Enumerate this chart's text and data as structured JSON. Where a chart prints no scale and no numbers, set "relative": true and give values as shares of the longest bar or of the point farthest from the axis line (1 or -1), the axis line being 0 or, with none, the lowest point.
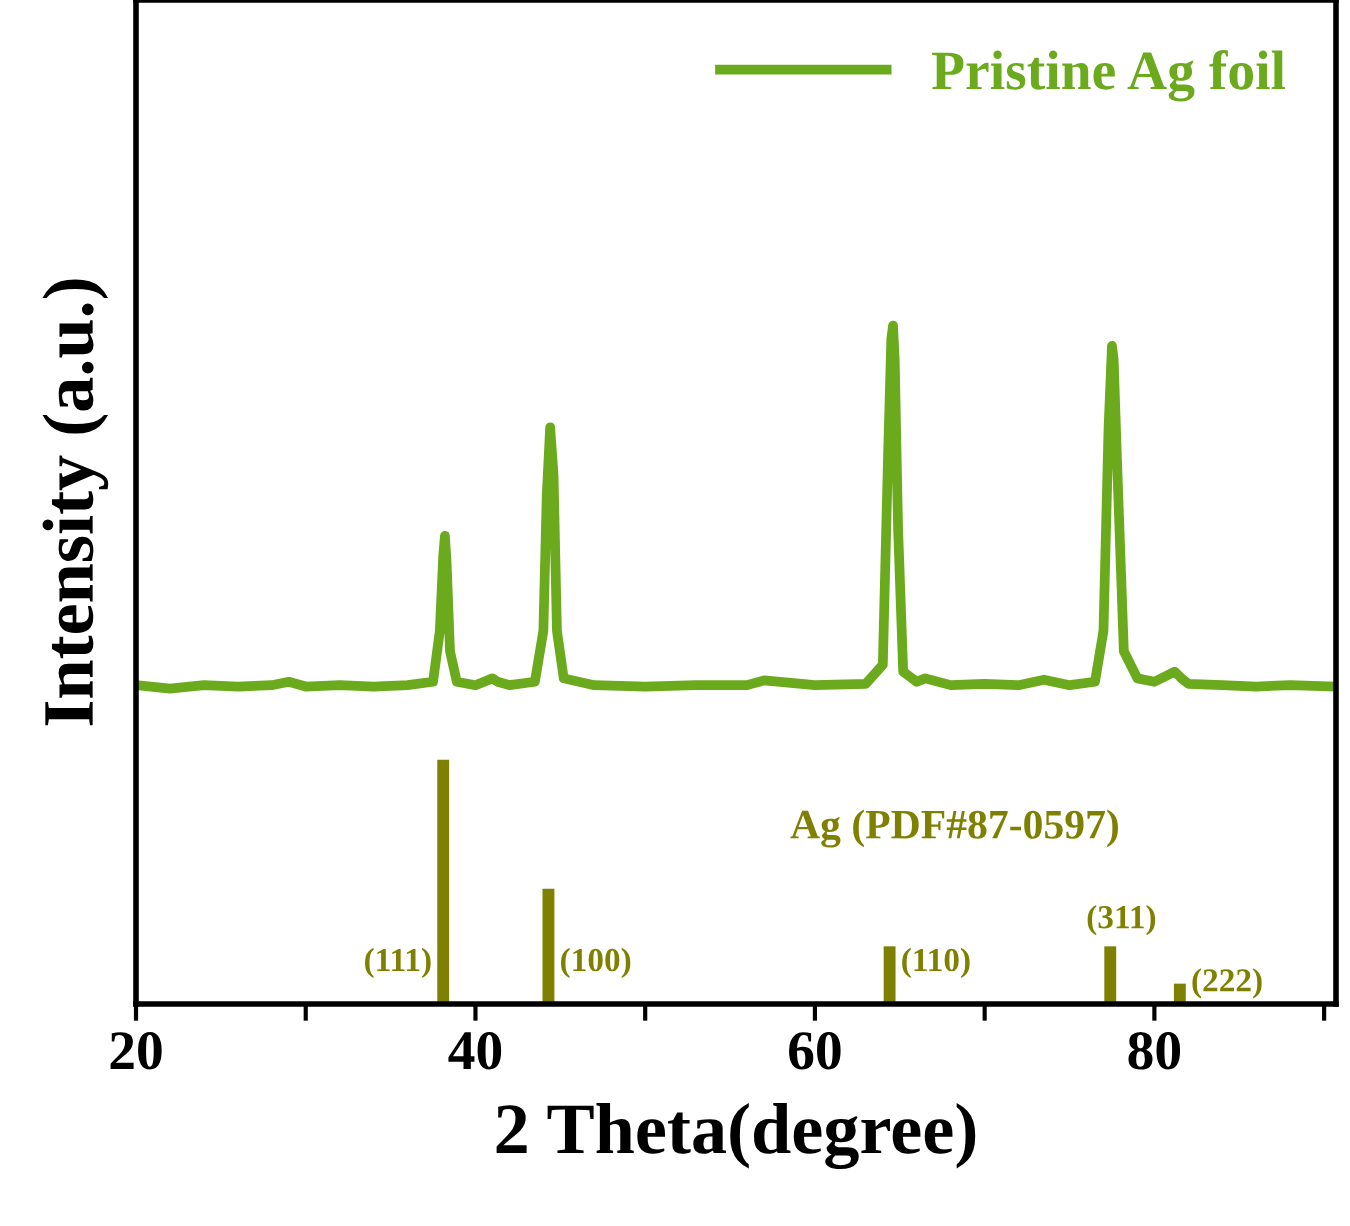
{
  "chart_data": {
    "type": "line",
    "relative": true,
    "xlabel": "2 Theta(degree)",
    "ylabel": "Intensity (a.u.)",
    "xlim": [
      20,
      90.7
    ],
    "xticks": [
      20,
      {
        "value": 30,
        "label": null
      },
      40,
      {
        "value": 50,
        "label": null
      },
      60,
      {
        "value": 70,
        "label": null
      },
      80,
      {
        "value": 90,
        "label": null
      }
    ],
    "legend": "top right",
    "grid": false,
    "tick_labels": "x",
    "series": [
      {
        "name": "Pristine Ag foil",
        "color": "#6aaa1c",
        "x": [
          20,
          22,
          24,
          26,
          28,
          29,
          30,
          32,
          34,
          36,
          37.5,
          37.9,
          38.1,
          38.2,
          38.3,
          38.5,
          38.9,
          40,
          41,
          41.3,
          42,
          43.5,
          44.0,
          44.2,
          44.4,
          44.6,
          44.8,
          45.2,
          47,
          50,
          53,
          56,
          57,
          60,
          63,
          64.0,
          64.3,
          64.5,
          64.6,
          64.7,
          64.9,
          65.2,
          66,
          66.5,
          68,
          70,
          72,
          73.5,
          75,
          76.5,
          77.0,
          77.3,
          77.5,
          77.6,
          77.8,
          78.2,
          79,
          80,
          81.2,
          81.6,
          82,
          84,
          86,
          88,
          90.5
        ],
        "values": [
          0.47,
          0.465,
          0.47,
          0.468,
          0.47,
          0.475,
          0.468,
          0.47,
          0.468,
          0.47,
          0.475,
          0.55,
          0.66,
          0.69,
          0.65,
          0.52,
          0.475,
          0.47,
          0.48,
          0.475,
          0.47,
          0.475,
          0.55,
          0.75,
          0.85,
          0.78,
          0.55,
          0.48,
          0.47,
          0.468,
          0.47,
          0.47,
          0.477,
          0.47,
          0.472,
          0.5,
          0.8,
          0.98,
          1,
          0.95,
          0.7,
          0.49,
          0.475,
          0.48,
          0.47,
          0.472,
          0.47,
          0.478,
          0.47,
          0.475,
          0.55,
          0.85,
          0.97,
          0.95,
          0.8,
          0.52,
          0.48,
          0.475,
          0.49,
          0.48,
          0.472,
          0.47,
          0.468,
          0.47,
          0.468
        ]
      },
      {
        "color": "#808000",
        "type": "bar",
        "x": [
          38.1,
          44.3,
          64.4,
          77.4,
          81.5
        ],
        "values": [
          0.36,
          0.17,
          0.085,
          0.085,
          0.03
        ]
      }
    ],
    "annotations": [
      {
        "text": "(111)",
        "x": 38.1,
        "y": 0.03
      },
      {
        "text": "(100)",
        "x": 44.3,
        "y": 0.03
      },
      {
        "text": "(110)",
        "x": 64.4,
        "y": 0.03
      },
      {
        "text": "(311)",
        "x": 77.4,
        "y": 0.085
      },
      {
        "text": "(222)",
        "x": 81.5,
        "y": 0.0
      },
      "Ag (PDF#87-0597)"
    ]
  }
}
